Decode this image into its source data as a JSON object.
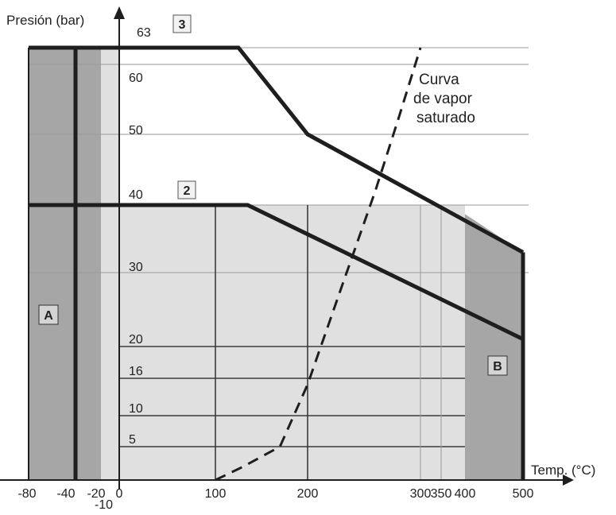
{
  "chart_data": {
    "type": "line",
    "title": "",
    "ylabel": "Presión (bar)",
    "xlabel": "Temp. (°C)",
    "x_ticks": [
      {
        "value": -80,
        "label": "-80"
      },
      {
        "value": -40,
        "label": "-40"
      },
      {
        "value": -20,
        "label": "-20"
      },
      {
        "value": -10,
        "label": "-10"
      },
      {
        "value": 0,
        "label": "0"
      },
      {
        "value": 100,
        "label": "100"
      },
      {
        "value": 200,
        "label": "200"
      },
      {
        "value": 300,
        "label": "300"
      },
      {
        "value": 350,
        "label": "350"
      },
      {
        "value": 400,
        "label": "400"
      },
      {
        "value": 500,
        "label": "500"
      }
    ],
    "y_ticks": [
      {
        "value": 63,
        "label": "63"
      },
      {
        "value": 60,
        "label": "60"
      },
      {
        "value": 50,
        "label": "50"
      },
      {
        "value": 40,
        "label": "40"
      },
      {
        "value": 30,
        "label": "30"
      },
      {
        "value": 20,
        "label": "20"
      },
      {
        "value": 16,
        "label": "16"
      },
      {
        "value": 10,
        "label": "10"
      },
      {
        "value": 5,
        "label": "5"
      }
    ],
    "xlim": [
      -80,
      500
    ],
    "ylim": [
      0,
      63
    ],
    "series": [
      {
        "name": "3",
        "x": [
          -80,
          125,
          200,
          500
        ],
        "y": [
          63,
          63,
          50,
          33
        ]
      },
      {
        "name": "2",
        "x": [
          -80,
          135,
          500
        ],
        "y": [
          40,
          40,
          21
        ]
      },
      {
        "name": "Curva de vapor saturado",
        "style": "dashed",
        "x": [
          100,
          130,
          170,
          200,
          230,
          260,
          280,
          300
        ],
        "y": [
          0,
          2,
          5,
          15,
          28,
          42,
          52,
          63
        ]
      }
    ],
    "regions": [
      {
        "label": "A",
        "x": [
          -80,
          -20
        ],
        "y": [
          0,
          63
        ]
      },
      {
        "label": "B",
        "x": [
          400,
          500
        ],
        "y": [
          0,
          40
        ]
      }
    ],
    "annotation": {
      "lines": [
        "Curva",
        "de vapor",
        "saturado"
      ]
    },
    "colors": {
      "region_dark": "#a6a6a6",
      "region_light": "#e0e0e0",
      "line": "#1e1e1e",
      "grid": "#9a9a9a"
    }
  }
}
